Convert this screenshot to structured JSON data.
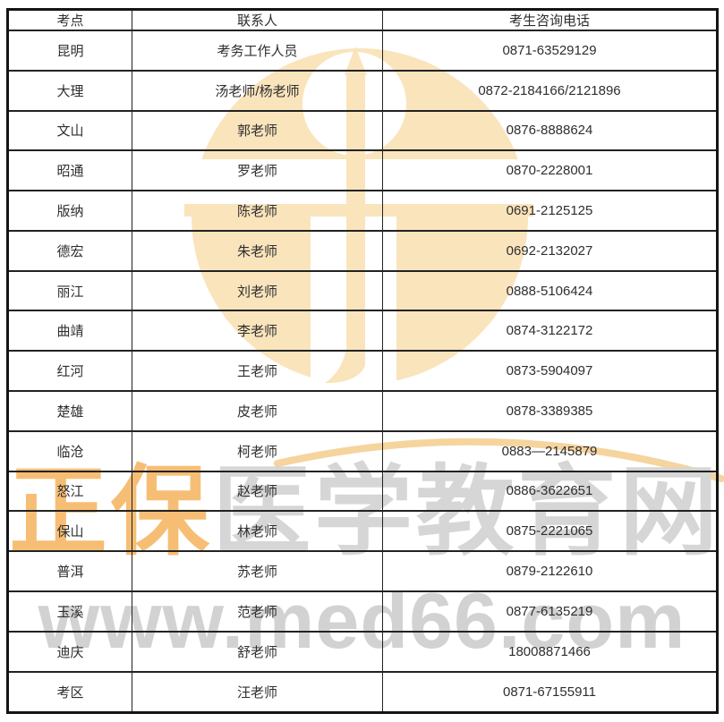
{
  "watermark": {
    "brand_orange_text": "正保",
    "brand_gray_text": "医学教育网",
    "url_text": "www.med66.com",
    "colors": {
      "logo_fill": "#FAE4BC",
      "swoosh": "#F5D49E",
      "brand_orange": "#F6BE74",
      "brand_gray": "#D6D6D6",
      "url_gray": "#D2D2D2"
    }
  },
  "table": {
    "headers": [
      "考点",
      "联系人",
      "考生咨询电话"
    ],
    "rows": [
      {
        "site": "昆明",
        "contact": "考务工作人员",
        "phone": "0871-63529129"
      },
      {
        "site": "大理",
        "contact": "汤老师/杨老师",
        "phone": "0872-2184166/2121896"
      },
      {
        "site": "文山",
        "contact": "郭老师",
        "phone": "0876-8888624"
      },
      {
        "site": "昭通",
        "contact": "罗老师",
        "phone": "0870-2228001"
      },
      {
        "site": "版纳",
        "contact": "陈老师",
        "phone": "0691-2125125"
      },
      {
        "site": "德宏",
        "contact": "朱老师",
        "phone": "0692-2132027"
      },
      {
        "site": "丽江",
        "contact": "刘老师",
        "phone": "0888-5106424"
      },
      {
        "site": "曲靖",
        "contact": "李老师",
        "phone": "0874-3122172"
      },
      {
        "site": "红河",
        "contact": "王老师",
        "phone": "0873-5904097"
      },
      {
        "site": "楚雄",
        "contact": "皮老师",
        "phone": "0878-3389385"
      },
      {
        "site": "临沧",
        "contact": "柯老师",
        "phone": "0883—2145879"
      },
      {
        "site": "怒江",
        "contact": "赵老师",
        "phone": "0886-3622651"
      },
      {
        "site": "保山",
        "contact": "林老师",
        "phone": "0875-2221065"
      },
      {
        "site": "普洱",
        "contact": "苏老师",
        "phone": "0879-2122610"
      },
      {
        "site": "玉溪",
        "contact": "范老师",
        "phone": "0877-6135219"
      },
      {
        "site": "迪庆",
        "contact": "舒老师",
        "phone": "18008871466"
      },
      {
        "site": "考区",
        "contact": "汪老师",
        "phone": "0871-67155911"
      }
    ]
  }
}
